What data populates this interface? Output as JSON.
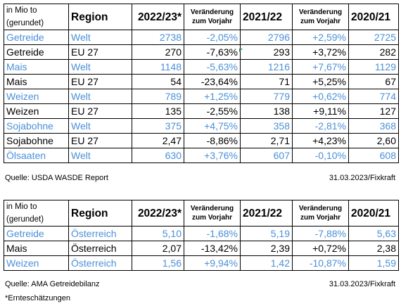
{
  "table1": {
    "unit_line1": "in Mio to",
    "unit_line2": "(gerundet)",
    "headers": {
      "region": "Region",
      "year1": "2022/23*",
      "change1_line1": "Veränderung",
      "change1_line2": "zum Vorjahr",
      "year2": "2021/22",
      "change2_line1": "Veränderung",
      "change2_line2": "zum Vorjahr",
      "year3": "2020/21"
    },
    "rows": [
      {
        "product": "Getreide",
        "region": "Welt",
        "v1": "2738",
        "c1": "-2,05%",
        "v2": "2796",
        "c2": "+2,59%",
        "v3": "2725"
      },
      {
        "product": "Getreide",
        "region": "EU 27",
        "v1": "270",
        "c1": "-7,63%",
        "v2": "293",
        "c2": "+3,72%",
        "v3": "282"
      },
      {
        "product": "Mais",
        "region": "Welt",
        "v1": "1148",
        "c1": "-5,63%",
        "v2": "1216",
        "c2": "+7,67%",
        "v3": "1129"
      },
      {
        "product": "Mais",
        "region": "EU 27",
        "v1": "54",
        "c1": "-23,64%",
        "v2": "71",
        "c2": "+5,25%",
        "v3": "67"
      },
      {
        "product": "Weizen",
        "region": "Welt",
        "v1": "789",
        "c1": "+1,25%",
        "v2": "779",
        "c2": "+0,62%",
        "v3": "774"
      },
      {
        "product": "Weizen",
        "region": "EU 27",
        "v1": "135",
        "c1": "-2,55%",
        "v2": "138",
        "c2": "+9,11%",
        "v3": "127"
      },
      {
        "product": "Sojabohne",
        "region": "Welt",
        "v1": "375",
        "c1": "+4,75%",
        "v2": "358",
        "c2": "-2,81%",
        "v3": "368"
      },
      {
        "product": "Sojabohne",
        "region": "EU 27",
        "v1": "2,47",
        "c1": "-8,86%",
        "v2": "2,71",
        "c2": "+4,23%",
        "v3": "2,60"
      },
      {
        "product": "Ölsaaten",
        "region": "Welt",
        "v1": "630",
        "c1": "+3,76%",
        "v2": "607",
        "c2": "-0,10%",
        "v3": "608"
      }
    ],
    "source": "Quelle: USDA WASDE Report",
    "date": "31.03.2023/Fixkraft"
  },
  "table2": {
    "unit_line1": "in Mio to",
    "unit_line2": "(gerundet)",
    "headers": {
      "region": "Region",
      "year1": "2022/23*",
      "change1_line1": "Veränderung",
      "change1_line2": "zum Vorjahr",
      "year2": "2021/22",
      "change2_line1": "Veränderung",
      "change2_line2": "zum Vorjahr",
      "year3": "2020/21"
    },
    "rows": [
      {
        "product": "Getreide",
        "region": "Österreich",
        "v1": "5,10",
        "c1": "-1,68%",
        "v2": "5,19",
        "c2": "-7,88%",
        "v3": "5,63"
      },
      {
        "product": "Mais",
        "region": "Österreich",
        "v1": "2,07",
        "c1": "-13,42%",
        "v2": "2,39",
        "c2": "+0,72%",
        "v3": "2,38"
      },
      {
        "product": "Weizen",
        "region": "Österreich",
        "v1": "1,56",
        "c1": "+9,94%",
        "v2": "1,42",
        "c2": "-10,87%",
        "v3": "1,59"
      }
    ],
    "source": "Quelle: AMA Getreidebilanz",
    "date": "31.03.2023/Fixkraft"
  },
  "footnote": "*Ernteschätzungen",
  "colors": {
    "blue_row": "#4a90d9",
    "black_row": "#000000"
  }
}
